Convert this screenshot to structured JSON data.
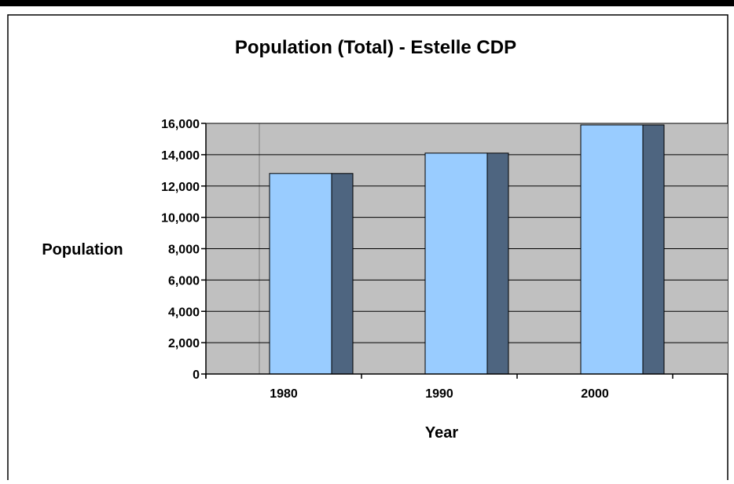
{
  "chart_data": {
    "type": "bar",
    "title": "Population (Total) - Estelle CDP",
    "xlabel": "Year",
    "ylabel": "Population",
    "categories": [
      "1980",
      "1990",
      "2000"
    ],
    "series": [
      {
        "values": [
          12800,
          14100,
          15900
        ]
      }
    ],
    "ylim": [
      0,
      16000
    ],
    "yticks": [
      "0",
      "2,000",
      "4,000",
      "6,000",
      "8,000",
      "10,000",
      "12,000",
      "14,000",
      "16,000"
    ],
    "grid": true,
    "legend": "none",
    "style": "3d-column"
  },
  "colors": {
    "plot_background": "#c0c0c0",
    "bar_front": "#99ccff",
    "bar_side": "#4e6580",
    "gridline": "#000000",
    "frame_border": "#000000",
    "top_bar": "#000000"
  }
}
